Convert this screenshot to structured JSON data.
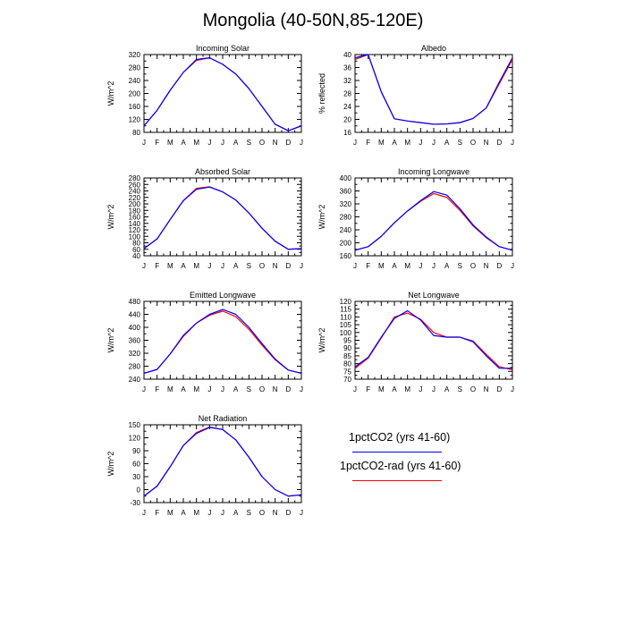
{
  "title": "Mongolia (40-50N,85-120E)",
  "legend": {
    "placement": "bottom-right",
    "entries": [
      {
        "label": "1pctCO2 (yrs 41-60)",
        "color": "#0000ff"
      },
      {
        "label": "1pctCO2-rad (yrs 41-60)",
        "color": "#ff0000"
      }
    ]
  },
  "chart_data": [
    {
      "type": "line",
      "title": "Incoming Solar",
      "ylabel": "W/m^2",
      "categories": [
        "J",
        "F",
        "M",
        "A",
        "M",
        "J",
        "J",
        "A",
        "S",
        "O",
        "N",
        "D",
        "J"
      ],
      "ylim": [
        80,
        320
      ],
      "yticks": [
        80,
        120,
        160,
        200,
        240,
        280,
        320
      ],
      "series": [
        {
          "name": "1pctCO2 (yrs 41-60)",
          "color": "#0000ff",
          "values": [
            100,
            148,
            210,
            265,
            305,
            310,
            290,
            260,
            215,
            160,
            105,
            85,
            100
          ]
        },
        {
          "name": "1pctCO2-rad (yrs 41-60)",
          "color": "#ff0000",
          "values": [
            100,
            148,
            210,
            265,
            302,
            310,
            290,
            260,
            215,
            160,
            105,
            85,
            100
          ]
        }
      ]
    },
    {
      "type": "line",
      "title": "Albedo",
      "ylabel": "% reflected",
      "categories": [
        "J",
        "F",
        "M",
        "A",
        "M",
        "J",
        "J",
        "A",
        "S",
        "O",
        "N",
        "D",
        "J"
      ],
      "ylim": [
        16,
        40
      ],
      "yticks": [
        16,
        20,
        24,
        28,
        32,
        36,
        40
      ],
      "series": [
        {
          "name": "1pctCO2 (yrs 41-60)",
          "color": "#0000ff",
          "values": [
            39,
            40,
            28.5,
            20.2,
            19.5,
            19,
            18.5,
            18.6,
            19,
            20.3,
            23.5,
            31.5,
            39
          ]
        },
        {
          "name": "1pctCO2-rad (yrs 41-60)",
          "color": "#ff0000",
          "values": [
            38.5,
            40,
            28.5,
            20.2,
            19.5,
            19,
            18.5,
            18.6,
            19,
            20.3,
            23.5,
            31,
            38.5
          ]
        }
      ]
    },
    {
      "type": "line",
      "title": "Absorbed Solar",
      "ylabel": "W/m^2",
      "categories": [
        "J",
        "F",
        "M",
        "A",
        "M",
        "J",
        "J",
        "A",
        "S",
        "O",
        "N",
        "D",
        "J"
      ],
      "ylim": [
        40,
        280
      ],
      "yticks": [
        40,
        60,
        80,
        100,
        120,
        140,
        160,
        180,
        200,
        220,
        240,
        260,
        280
      ],
      "series": [
        {
          "name": "1pctCO2 (yrs 41-60)",
          "color": "#0000ff",
          "values": [
            62,
            92,
            152,
            210,
            245,
            252,
            237,
            212,
            172,
            125,
            85,
            60,
            62
          ]
        },
        {
          "name": "1pctCO2-rad (yrs 41-60)",
          "color": "#ff0000",
          "values": [
            62,
            92,
            152,
            210,
            248,
            253,
            237,
            212,
            172,
            125,
            85,
            60,
            62
          ]
        }
      ]
    },
    {
      "type": "line",
      "title": "Incoming Longwave",
      "ylabel": "W/m^2",
      "categories": [
        "J",
        "F",
        "M",
        "A",
        "M",
        "J",
        "J",
        "A",
        "S",
        "O",
        "N",
        "D",
        "J"
      ],
      "ylim": [
        160,
        400
      ],
      "yticks": [
        160,
        200,
        240,
        280,
        320,
        360,
        400
      ],
      "series": [
        {
          "name": "1pctCO2 (yrs 41-60)",
          "color": "#0000ff",
          "values": [
            177,
            188,
            220,
            262,
            298,
            330,
            358,
            347,
            305,
            255,
            218,
            188,
            177
          ]
        },
        {
          "name": "1pctCO2-rad (yrs 41-60)",
          "color": "#ff0000",
          "values": [
            177,
            188,
            220,
            262,
            298,
            328,
            352,
            340,
            300,
            252,
            216,
            188,
            177
          ]
        }
      ]
    },
    {
      "type": "line",
      "title": "Emitted Longwave",
      "ylabel": "W/m^2",
      "categories": [
        "J",
        "F",
        "M",
        "A",
        "M",
        "J",
        "J",
        "A",
        "S",
        "O",
        "N",
        "D",
        "J"
      ],
      "ylim": [
        240,
        480
      ],
      "yticks": [
        240,
        280,
        320,
        360,
        400,
        440,
        480
      ],
      "series": [
        {
          "name": "1pctCO2 (yrs 41-60)",
          "color": "#0000ff",
          "values": [
            258,
            270,
            318,
            375,
            413,
            440,
            455,
            440,
            400,
            350,
            302,
            268,
            258
          ]
        },
        {
          "name": "1pctCO2-rad (yrs 41-60)",
          "color": "#ff0000",
          "values": [
            258,
            270,
            318,
            372,
            413,
            437,
            450,
            433,
            394,
            345,
            300,
            268,
            258
          ]
        }
      ]
    },
    {
      "type": "line",
      "title": "Net Longwave",
      "ylabel": "W/m^2",
      "categories": [
        "J",
        "F",
        "M",
        "A",
        "M",
        "J",
        "J",
        "A",
        "S",
        "O",
        "N",
        "D",
        "J"
      ],
      "ylim": [
        70,
        120
      ],
      "yticks": [
        70,
        75,
        80,
        85,
        90,
        95,
        100,
        105,
        110,
        115,
        120
      ],
      "series": [
        {
          "name": "1pctCO2 (yrs 41-60)",
          "color": "#0000ff",
          "values": [
            78,
            84,
            97,
            109,
            114,
            108,
            98,
            97,
            97,
            94,
            85,
            77,
            77
          ]
        },
        {
          "name": "1pctCO2-rad (yrs 41-60)",
          "color": "#ff0000",
          "values": [
            77,
            83.5,
            96.5,
            110,
            112.5,
            108.5,
            100,
            97,
            97,
            94.5,
            86,
            78,
            76
          ]
        }
      ]
    },
    {
      "type": "line",
      "title": "Net Radiation",
      "ylabel": "W/m^2",
      "categories": [
        "J",
        "F",
        "M",
        "A",
        "M",
        "J",
        "J",
        "A",
        "S",
        "O",
        "N",
        "D",
        "J"
      ],
      "ylim": [
        -30,
        150
      ],
      "yticks": [
        -30,
        0,
        30,
        60,
        90,
        120,
        150
      ],
      "series": [
        {
          "name": "1pctCO2 (yrs 41-60)",
          "color": "#0000ff",
          "values": [
            -15,
            8,
            53,
            102,
            130,
            144,
            139,
            115,
            75,
            30,
            0,
            -15,
            -12
          ]
        },
        {
          "name": "1pctCO2-rad (yrs 41-60)",
          "color": "#ff0000",
          "values": [
            -15,
            8,
            53,
            102,
            132,
            145,
            139,
            115,
            75,
            30,
            0,
            -15,
            -12
          ]
        }
      ]
    }
  ]
}
